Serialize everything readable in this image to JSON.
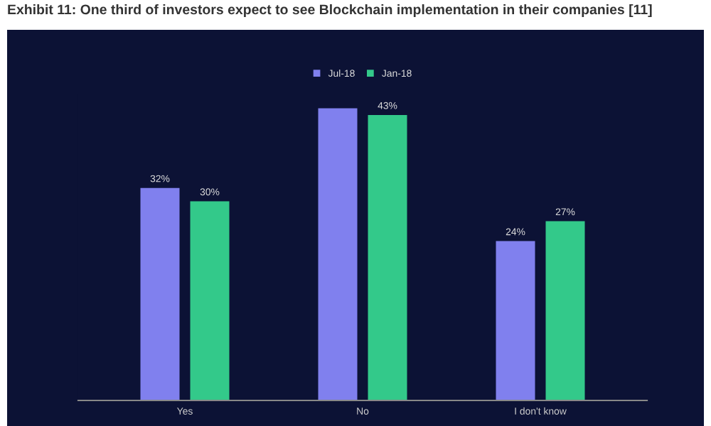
{
  "chart_data": {
    "type": "bar",
    "title": "Exhibit 11: One third of investors expect to see Blockchain implementation in their companies [11]",
    "categories": [
      "Yes",
      "No",
      "I don't know"
    ],
    "series": [
      {
        "name": "Jul-18",
        "color": "#8080ee",
        "values": [
          32,
          44,
          24
        ],
        "value_labels": [
          "32%",
          null,
          "24%"
        ]
      },
      {
        "name": "Jan-18",
        "color": "#33c98a",
        "values": [
          30,
          43,
          27
        ],
        "value_labels": [
          "30%",
          "43%",
          "27%"
        ]
      }
    ],
    "legend": "top"
  }
}
